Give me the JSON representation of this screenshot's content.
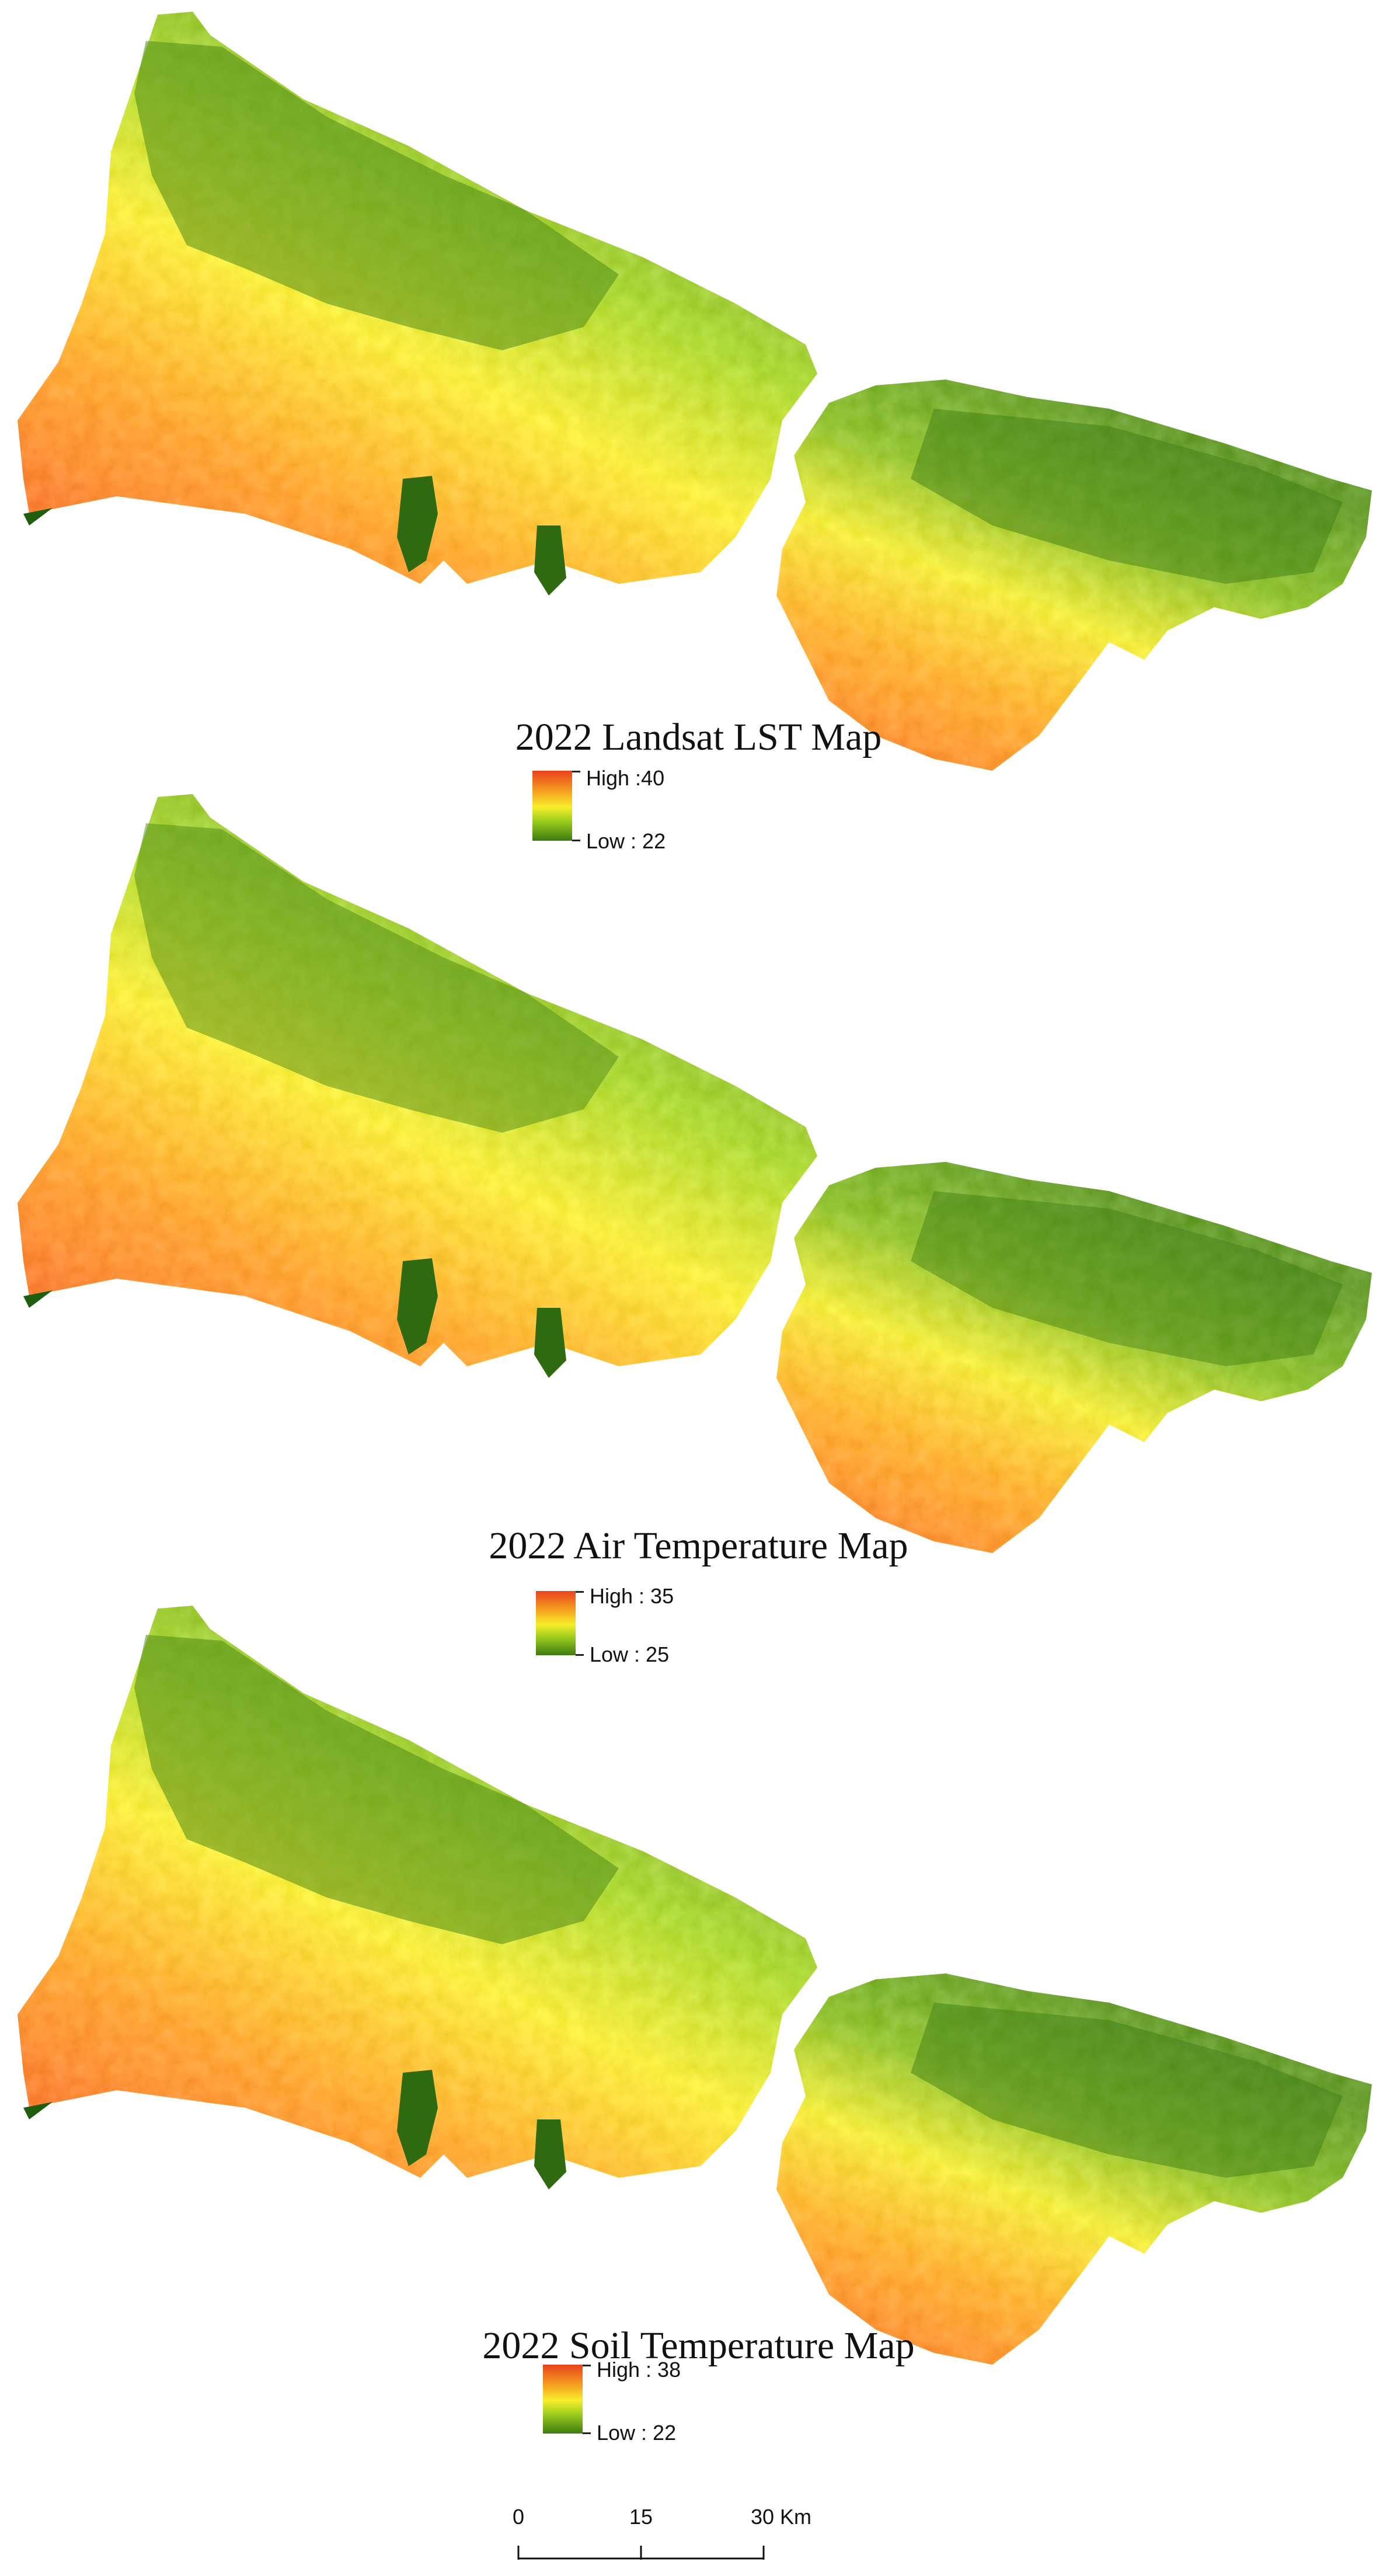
{
  "panels": [
    {
      "title": "2022 Landsat LST Map",
      "legend": {
        "high": "High :40",
        "low": "Low : 22"
      }
    },
    {
      "title": "2022 Air Temperature Map",
      "legend": {
        "high": "High : 35",
        "low": "Low : 25"
      }
    },
    {
      "title": "2022 Soil Temperature Map",
      "legend": {
        "high": "High : 38",
        "low": "Low : 22"
      }
    }
  ],
  "scale_bar": {
    "labels": [
      "0",
      "15",
      "30 Km"
    ]
  },
  "colors": {
    "high": "#e8421c",
    "mid_high": "#f5a21f",
    "mid": "#f7ee2a",
    "mid_low": "#9ccd1c",
    "low": "#3d7a12"
  }
}
